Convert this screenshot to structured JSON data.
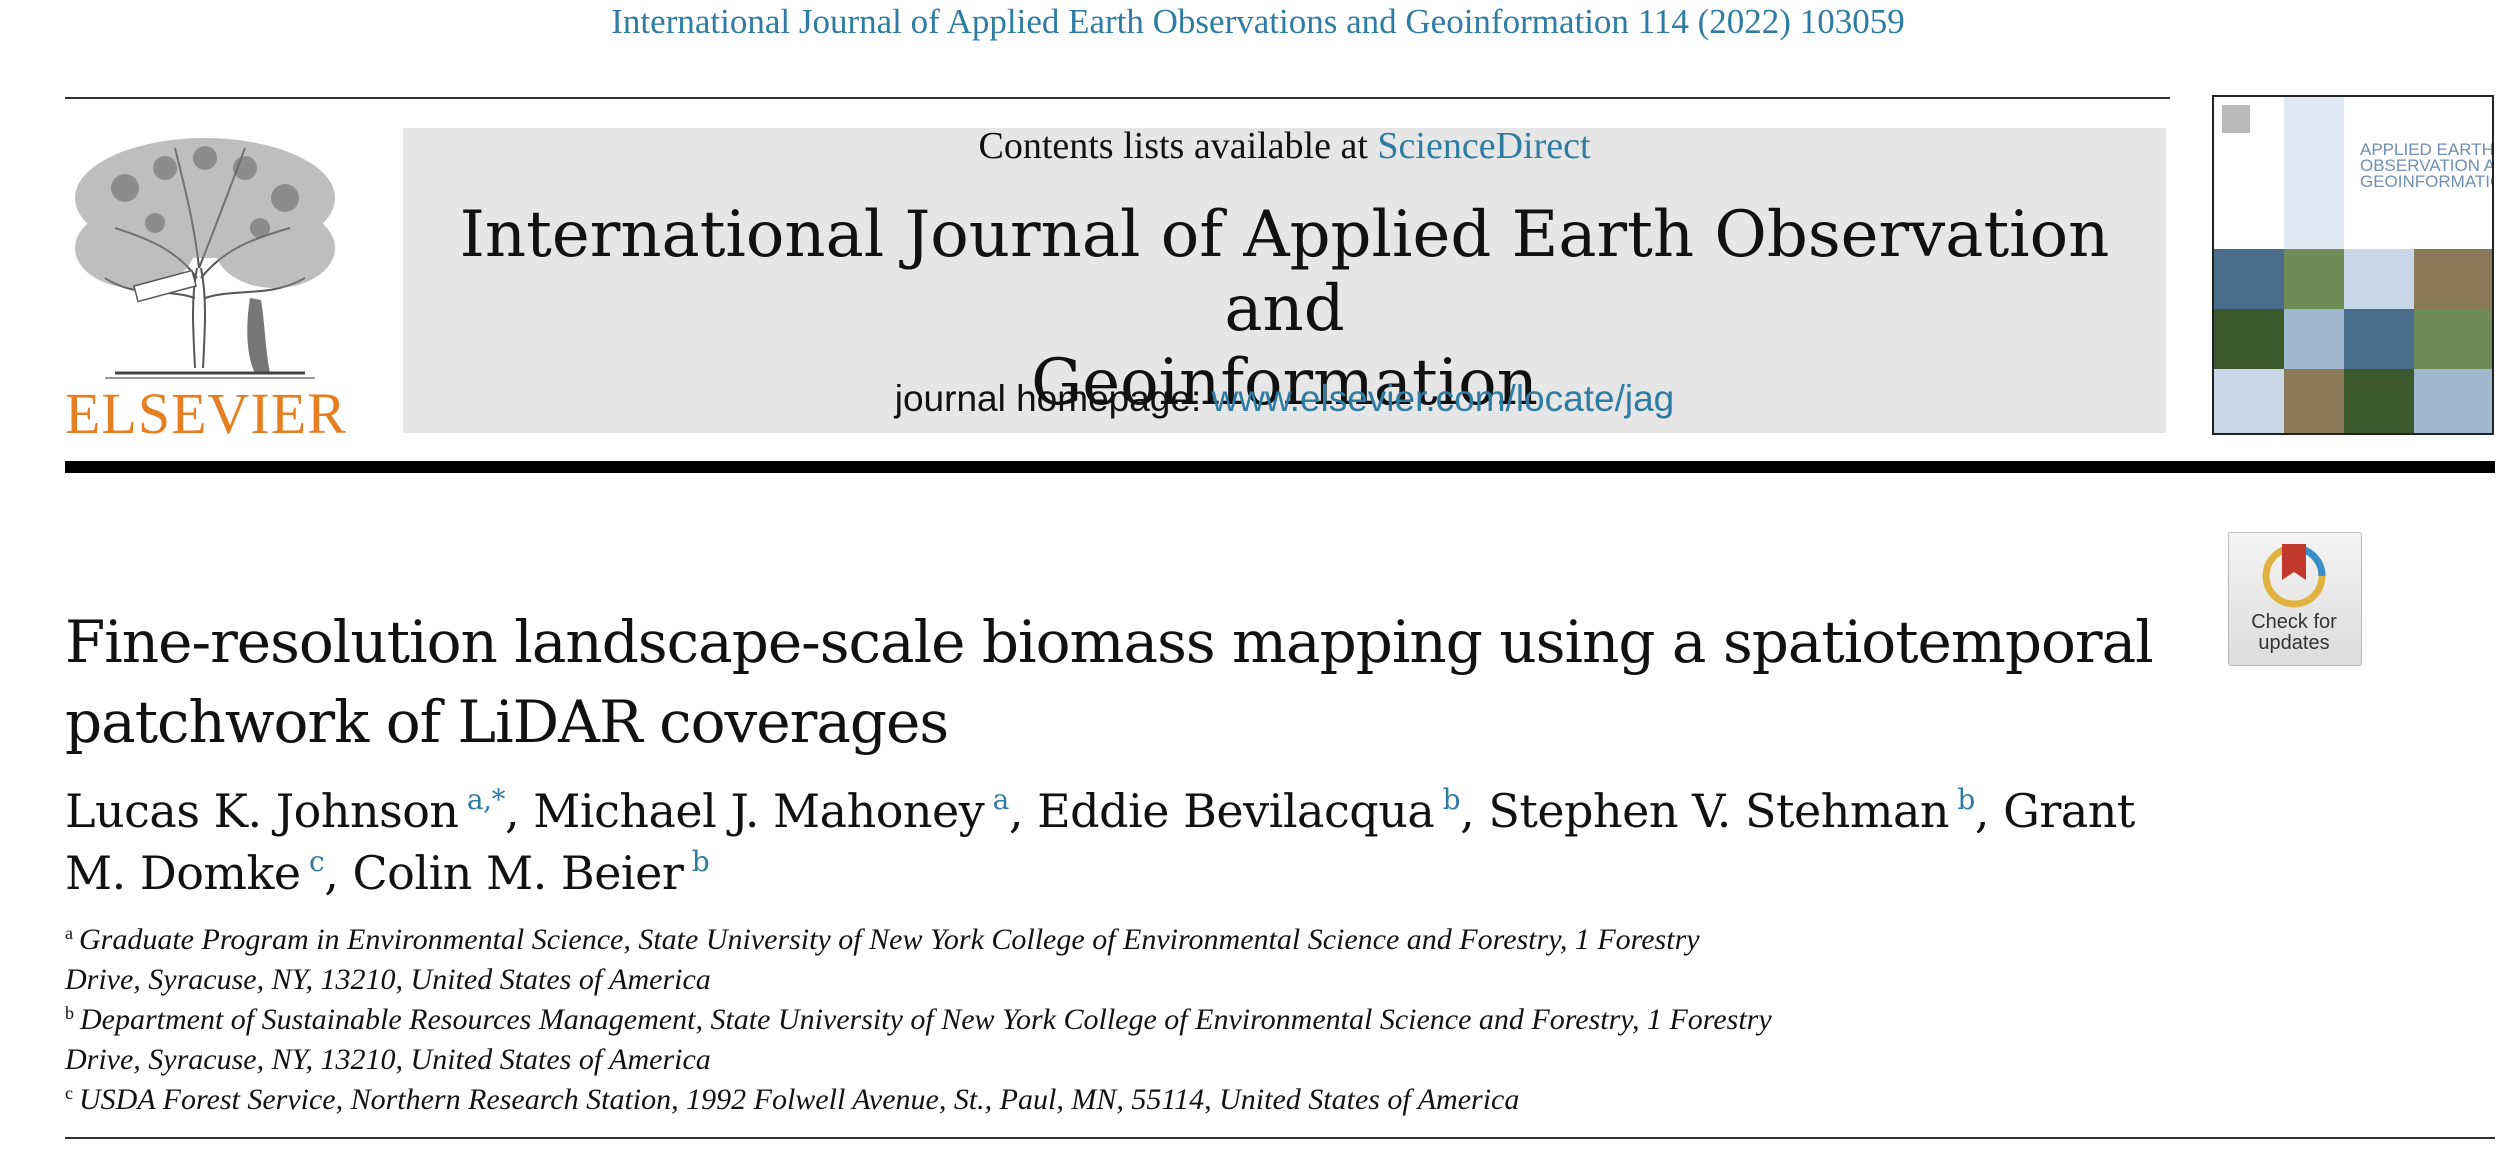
{
  "running_head": "International Journal of Applied Earth Observations and Geoinformation 114 (2022) 103059",
  "publisher": "ELSEVIER",
  "banner": {
    "contents_prefix": "Contents lists available at ",
    "contents_link": "ScienceDirect",
    "journal_title_line1": "International Journal of Applied Earth Observation and",
    "journal_title_line2": "Geoinformation",
    "homepage_prefix": "journal homepage: ",
    "homepage_link": "www.elsevier.com/locate/jag"
  },
  "cover": {
    "title_line1": "APPLIED EARTH",
    "title_line2": "OBSERVATION AND",
    "title_line3": "GEOINFORMATION",
    "colors": [
      "#4a6c8c",
      "#6f8c58",
      "#c9d6e6",
      "#8a7a5a",
      "#3d5a2e",
      "#9fb7cf"
    ]
  },
  "badge": {
    "line1": "Check for",
    "line2": "updates",
    "icon": "check-for-updates-icon"
  },
  "article_title_line1": "Fine-resolution landscape-scale biomass mapping using a spatiotemporal",
  "article_title_line2": "patchwork of LiDAR coverages",
  "authors": [
    {
      "name": "Lucas K. Johnson",
      "sup": "a,*",
      "sep": ", "
    },
    {
      "name": "Michael J. Mahoney",
      "sup": "a",
      "sep": ", "
    },
    {
      "name": "Eddie Bevilacqua",
      "sup": "b",
      "sep": ", "
    },
    {
      "name": "Stephen V. Stehman",
      "sup": "b",
      "sep": ", "
    },
    {
      "name": "Grant M. Domke",
      "sup": "c",
      "sep": ", "
    },
    {
      "name": "Colin M. Beier",
      "sup": "b",
      "sep": ""
    }
  ],
  "affiliations": [
    {
      "label": "a",
      "text": "Graduate Program in Environmental Science, State University of New York College of Environmental Science and Forestry, 1 Forestry",
      "text2": "Drive, Syracuse, NY, 13210, United States of America"
    },
    {
      "label": "b",
      "text": "Department of Sustainable Resources Management, State University of New York College of Environmental Science and Forestry, 1 Forestry",
      "text2": "Drive, Syracuse, NY, 13210, United States of America"
    },
    {
      "label": "c",
      "text": "USDA Forest Service, Northern Research Station, 1992 Folwell Avenue, St., Paul, MN, 55114, United States of America",
      "text2": ""
    }
  ],
  "colors": {
    "link": "#2e7ca3",
    "publisher": "#e67e22",
    "banner_bg": "#e6e6e6"
  }
}
